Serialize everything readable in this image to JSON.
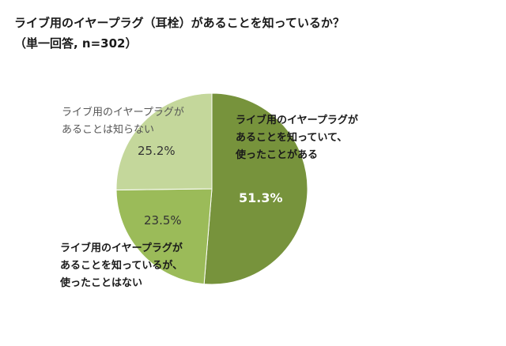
{
  "title": {
    "line1": "ライブ用のイヤープラグ（耳栓）があることを知っているか？",
    "line2": "（単一回答, n=302）"
  },
  "colors": {
    "slice1": "#77933c",
    "slice2": "#9bbb59",
    "slice3": "#c4d79b",
    "border": "#ffffff"
  },
  "chart_data": {
    "type": "pie",
    "title": "ライブ用のイヤープラグ（耳栓）があることを知っているか？（単一回答, n=302）",
    "unit": "%",
    "slices": [
      {
        "label_lines": [
          "ライブ用のイヤープラグが",
          "あることを知っていて、",
          "使ったことがある"
        ],
        "value": 51.3,
        "value_label": "51.3%"
      },
      {
        "label_lines": [
          "ライブ用のイヤープラグが",
          "あることを知っているが、",
          "使ったことはない"
        ],
        "value": 23.5,
        "value_label": "23.5%"
      },
      {
        "label_lines": [
          "ライブ用のイヤープラグが",
          "あることは知らない"
        ],
        "value": 25.2,
        "value_label": "25.2%"
      }
    ]
  }
}
